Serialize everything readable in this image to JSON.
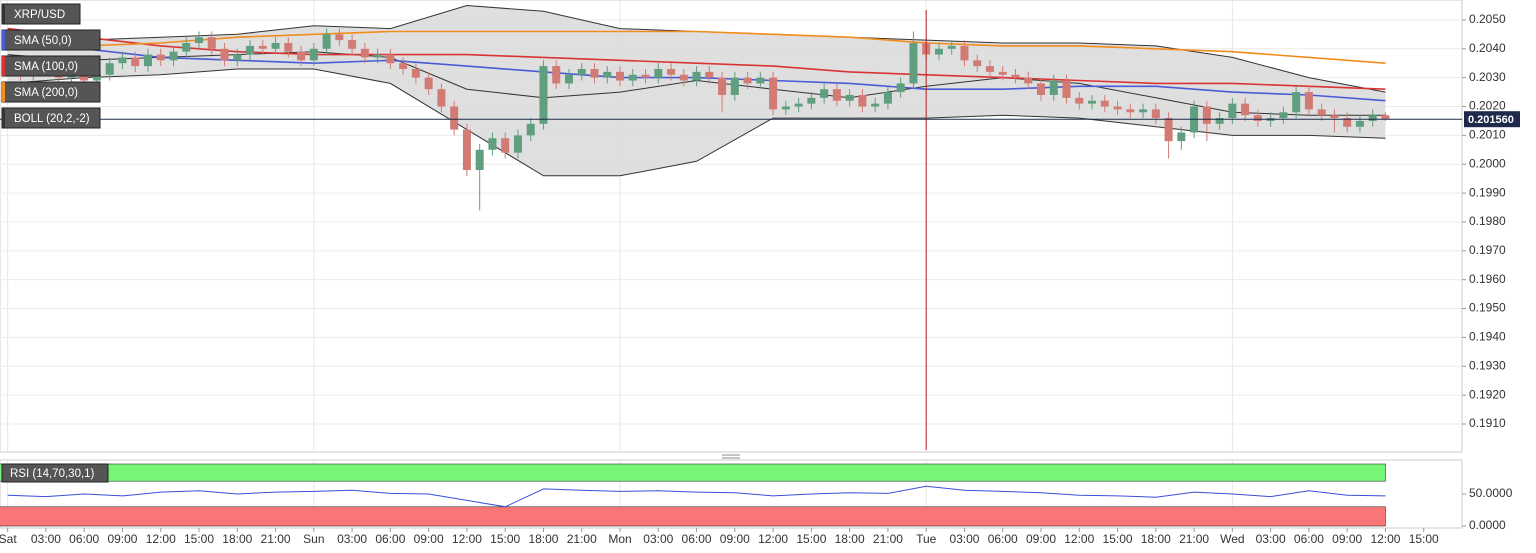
{
  "chart_data": {
    "type": "candlestick",
    "title": "XRP/USD",
    "up_color": "#5f9e7e",
    "down_color": "#d17b74",
    "xlim": [
      -0.6,
      114
    ],
    "ylim": [
      0.19003,
      0.20569
    ],
    "yticks": [
      {
        "value": 0.205,
        "label": "0.2050"
      },
      {
        "value": 0.204,
        "label": "0.2040"
      },
      {
        "value": 0.203,
        "label": "0.2030"
      },
      {
        "value": 0.202,
        "label": "0.2020"
      },
      {
        "value": 0.201,
        "label": "0.2010"
      },
      {
        "value": 0.2,
        "label": "0.2000"
      },
      {
        "value": 0.199,
        "label": "0.1990"
      },
      {
        "value": 0.198,
        "label": "0.1980"
      },
      {
        "value": 0.197,
        "label": "0.1970"
      },
      {
        "value": 0.196,
        "label": "0.1960"
      },
      {
        "value": 0.195,
        "label": "0.1950"
      },
      {
        "value": 0.194,
        "label": "0.1940"
      },
      {
        "value": 0.193,
        "label": "0.1930"
      },
      {
        "value": 0.192,
        "label": "0.1920"
      },
      {
        "value": 0.191,
        "label": "0.1910"
      }
    ],
    "xticks": [
      {
        "value": 0,
        "label": "Sat"
      },
      {
        "value": 3,
        "label": "03:00"
      },
      {
        "value": 6,
        "label": "06:00"
      },
      {
        "value": 9,
        "label": "09:00"
      },
      {
        "value": 12,
        "label": "12:00"
      },
      {
        "value": 15,
        "label": "15:00"
      },
      {
        "value": 18,
        "label": "18:00"
      },
      {
        "value": 21,
        "label": "21:00"
      },
      {
        "value": 24,
        "label": "Sun"
      },
      {
        "value": 27,
        "label": "03:00"
      },
      {
        "value": 30,
        "label": "06:00"
      },
      {
        "value": 33,
        "label": "09:00"
      },
      {
        "value": 36,
        "label": "12:00"
      },
      {
        "value": 39,
        "label": "15:00"
      },
      {
        "value": 42,
        "label": "18:00"
      },
      {
        "value": 45,
        "label": "21:00"
      },
      {
        "value": 48,
        "label": "Mon"
      },
      {
        "value": 51,
        "label": "03:00"
      },
      {
        "value": 54,
        "label": "06:00"
      },
      {
        "value": 57,
        "label": "09:00"
      },
      {
        "value": 60,
        "label": "12:00"
      },
      {
        "value": 63,
        "label": "15:00"
      },
      {
        "value": 66,
        "label": "18:00"
      },
      {
        "value": 69,
        "label": "21:00"
      },
      {
        "value": 72,
        "label": "Tue"
      },
      {
        "value": 75,
        "label": "03:00"
      },
      {
        "value": 78,
        "label": "06:00"
      },
      {
        "value": 81,
        "label": "09:00"
      },
      {
        "value": 84,
        "label": "12:00"
      },
      {
        "value": 87,
        "label": "15:00"
      },
      {
        "value": 90,
        "label": "18:00"
      },
      {
        "value": 93,
        "label": "21:00"
      },
      {
        "value": 96,
        "label": "Wed"
      },
      {
        "value": 99,
        "label": "03:00"
      },
      {
        "value": 102,
        "label": "06:00"
      },
      {
        "value": 105,
        "label": "09:00"
      },
      {
        "value": 108,
        "label": "12:00"
      },
      {
        "value": 111,
        "label": "15:00"
      }
    ],
    "open": [
      0.2036,
      0.2034,
      0.2031,
      0.2035,
      0.2033,
      0.203,
      0.2032,
      0.2029,
      0.2031,
      0.2035,
      0.2037,
      0.2034,
      0.2038,
      0.2036,
      0.2039,
      0.2042,
      0.2044,
      0.204,
      0.2036,
      0.2038,
      0.2041,
      0.204,
      0.2042,
      0.2039,
      0.2036,
      0.204,
      0.2045,
      0.2043,
      0.204,
      0.2037,
      0.2038,
      0.2035,
      0.2033,
      0.203,
      0.2026,
      0.202,
      0.2012,
      0.1998,
      0.2005,
      0.2009,
      0.2004,
      0.201,
      0.2014,
      0.2034,
      0.2028,
      0.2031,
      0.2033,
      0.203,
      0.2032,
      0.2029,
      0.2031,
      0.203,
      0.2033,
      0.2031,
      0.2029,
      0.2032,
      0.203,
      0.2024,
      0.203,
      0.2028,
      0.203,
      0.2019,
      0.202,
      0.2021,
      0.2023,
      0.2026,
      0.2022,
      0.2024,
      0.202,
      0.2021,
      0.2025,
      0.2028,
      0.2042,
      0.2038,
      0.204,
      0.2041,
      0.2036,
      0.2034,
      0.2032,
      0.2031,
      0.203,
      0.2028,
      0.2024,
      0.2029,
      0.2023,
      0.2021,
      0.2022,
      0.202,
      0.2019,
      0.2018,
      0.2019,
      0.2016,
      0.2008,
      0.2011,
      0.202,
      0.2014,
      0.2016,
      0.2021,
      0.2017,
      0.2015,
      0.2016,
      0.2018,
      0.2025,
      0.2019,
      0.2017,
      0.2016,
      0.2013,
      0.2015,
      0.2017
    ],
    "high": [
      0.2038,
      0.2036,
      0.2037,
      0.2037,
      0.2035,
      0.2034,
      0.2034,
      0.2033,
      0.2037,
      0.2039,
      0.2039,
      0.204,
      0.204,
      0.2041,
      0.2044,
      0.2046,
      0.2046,
      0.2042,
      0.204,
      0.2043,
      0.2043,
      0.2044,
      0.2044,
      0.2041,
      0.2042,
      0.2047,
      0.2047,
      0.2045,
      0.2042,
      0.204,
      0.204,
      0.2037,
      0.2035,
      0.2032,
      0.2028,
      0.2022,
      0.2014,
      0.2007,
      0.2011,
      0.2011,
      0.2012,
      0.2016,
      0.2036,
      0.2036,
      0.2033,
      0.2035,
      0.2035,
      0.2034,
      0.2034,
      0.2033,
      0.2033,
      0.2035,
      0.2035,
      0.2033,
      0.2034,
      0.2034,
      0.2032,
      0.2032,
      0.2032,
      0.2032,
      0.2032,
      0.2022,
      0.2023,
      0.2025,
      0.2028,
      0.2028,
      0.2026,
      0.2026,
      0.2023,
      0.2027,
      0.203,
      0.2046,
      0.2044,
      0.2042,
      0.2043,
      0.2043,
      0.2038,
      0.2036,
      0.2034,
      0.2033,
      0.2032,
      0.203,
      0.2031,
      0.2031,
      0.2025,
      0.2024,
      0.2024,
      0.2022,
      0.2021,
      0.2021,
      0.2021,
      0.2018,
      0.2013,
      0.2022,
      0.2022,
      0.2018,
      0.2023,
      0.2023,
      0.2019,
      0.2018,
      0.202,
      0.2027,
      0.2027,
      0.2021,
      0.2019,
      0.2018,
      0.2017,
      0.2019,
      0.2018
    ],
    "low": [
      0.2032,
      0.2029,
      0.2029,
      0.2031,
      0.2028,
      0.2028,
      0.2027,
      0.2027,
      0.2029,
      0.2033,
      0.2032,
      0.2032,
      0.2034,
      0.2034,
      0.2037,
      0.204,
      0.2038,
      0.2034,
      0.2034,
      0.2036,
      0.2038,
      0.2038,
      0.2037,
      0.2034,
      0.2034,
      0.2038,
      0.2041,
      0.2038,
      0.2035,
      0.2035,
      0.2033,
      0.2031,
      0.2028,
      0.2024,
      0.2018,
      0.201,
      0.1996,
      0.1984,
      0.2003,
      0.2002,
      0.2002,
      0.2008,
      0.2012,
      0.2026,
      0.2026,
      0.2029,
      0.2028,
      0.2028,
      0.2027,
      0.2027,
      0.2028,
      0.2028,
      0.2029,
      0.2027,
      0.2027,
      0.2028,
      0.2018,
      0.2022,
      0.2026,
      0.2026,
      0.2017,
      0.2017,
      0.2018,
      0.2019,
      0.2021,
      0.202,
      0.202,
      0.2018,
      0.2018,
      0.2019,
      0.2023,
      0.2026,
      0.2036,
      0.2036,
      0.2038,
      0.2034,
      0.2032,
      0.203,
      0.2029,
      0.2028,
      0.2026,
      0.2022,
      0.2022,
      0.2021,
      0.2019,
      0.2019,
      0.2018,
      0.2017,
      0.2016,
      0.2016,
      0.2014,
      0.2002,
      0.2005,
      0.2009,
      0.2008,
      0.2012,
      0.2014,
      0.2015,
      0.2013,
      0.2013,
      0.2014,
      0.2016,
      0.2017,
      0.2015,
      0.2011,
      0.2011,
      0.2011,
      0.2013,
      0.2015
    ],
    "close": [
      0.2034,
      0.2031,
      0.2035,
      0.2033,
      0.203,
      0.2032,
      0.2029,
      0.2031,
      0.2035,
      0.2037,
      0.2034,
      0.2038,
      0.2036,
      0.2039,
      0.2042,
      0.2044,
      0.204,
      0.2036,
      0.2038,
      0.2041,
      0.204,
      0.2042,
      0.2039,
      0.2036,
      0.204,
      0.2045,
      0.2043,
      0.204,
      0.2037,
      0.2038,
      0.2035,
      0.2033,
      0.203,
      0.2026,
      0.202,
      0.2012,
      0.1998,
      0.2005,
      0.2009,
      0.2004,
      0.201,
      0.2014,
      0.2034,
      0.2028,
      0.2031,
      0.2033,
      0.203,
      0.2032,
      0.2029,
      0.2031,
      0.203,
      0.2033,
      0.2031,
      0.2029,
      0.2032,
      0.203,
      0.2024,
      0.203,
      0.2028,
      0.203,
      0.2019,
      0.202,
      0.2021,
      0.2023,
      0.2026,
      0.2022,
      0.2024,
      0.202,
      0.2021,
      0.2025,
      0.2028,
      0.2042,
      0.2038,
      0.204,
      0.2041,
      0.2036,
      0.2034,
      0.2032,
      0.2031,
      0.203,
      0.2028,
      0.2024,
      0.2029,
      0.2023,
      0.2021,
      0.2022,
      0.202,
      0.2019,
      0.2018,
      0.2019,
      0.2016,
      0.2008,
      0.2011,
      0.202,
      0.2014,
      0.2016,
      0.2021,
      0.2017,
      0.2015,
      0.2016,
      0.2018,
      0.2025,
      0.2019,
      0.2017,
      0.2016,
      0.2013,
      0.2015,
      0.2017,
      0.20156
    ],
    "last": 0.20156,
    "last_label": "0.201560",
    "last_color": "#1d2a4a",
    "event_x": 72,
    "event_color": "#b22222",
    "line_x": [
      0,
      6,
      12,
      18,
      24,
      30,
      36,
      42,
      48,
      54,
      60,
      66,
      72,
      78,
      84,
      90,
      96,
      102,
      108
    ],
    "series": [
      {
        "name": "SMA (50,0)",
        "color": "#4a5bd6",
        "values": [
          0.2045,
          0.204,
          0.2037,
          0.2036,
          0.2035,
          0.2036,
          0.2034,
          0.2032,
          0.203,
          0.203,
          0.2029,
          0.2028,
          0.2026,
          0.2026,
          0.2027,
          0.2027,
          0.2025,
          0.2024,
          0.2022
        ]
      },
      {
        "name": "SMA (100,0)",
        "color": "#d93434",
        "values": [
          0.2047,
          0.2044,
          0.2041,
          0.2039,
          0.2038,
          0.2038,
          0.2038,
          0.2037,
          0.2036,
          0.2035,
          0.2034,
          0.2032,
          0.2031,
          0.203,
          0.2029,
          0.2028,
          0.2028,
          0.2027,
          0.2026
        ]
      },
      {
        "name": "SMA (200,0)",
        "color": "#f28c1c",
        "values": [
          0.204,
          0.2041,
          0.2042,
          0.2044,
          0.2045,
          0.2046,
          0.2046,
          0.2046,
          0.2046,
          0.2046,
          0.2045,
          0.2044,
          0.2042,
          0.2041,
          0.2041,
          0.204,
          0.2039,
          0.2037,
          0.2035
        ]
      }
    ],
    "bollinger": {
      "name": "BOLL (20,2,-2)",
      "color": "#333333",
      "fill": "#dcdcdc",
      "upper": [
        0.2046,
        0.2043,
        0.2044,
        0.2045,
        0.2048,
        0.2047,
        0.2055,
        0.2053,
        0.2047,
        0.2046,
        0.2045,
        0.2044,
        0.2043,
        0.2042,
        0.2042,
        0.2041,
        0.2037,
        0.203,
        0.2025
      ],
      "middle": [
        0.2038,
        0.2036,
        0.2037,
        0.2038,
        0.2039,
        0.2037,
        0.2026,
        0.2023,
        0.2025,
        0.2029,
        0.2026,
        0.2023,
        0.2027,
        0.203,
        0.2028,
        0.2023,
        0.2018,
        0.2017,
        0.2017
      ],
      "lower": [
        0.2028,
        0.203,
        0.2031,
        0.2033,
        0.2033,
        0.2028,
        0.2012,
        0.1996,
        0.1996,
        0.2001,
        0.2016,
        0.2016,
        0.2016,
        0.2017,
        0.2016,
        0.2013,
        0.201,
        0.201,
        0.2009
      ]
    },
    "rsi": {
      "type": "line",
      "name": "RSI (14,70,30,1)",
      "color": "#3a4fd8",
      "overbought": 70,
      "oversold": 30,
      "overbought_color": "#77f577",
      "oversold_color": "#f87676",
      "ylim": [
        0,
        100
      ],
      "yticks": [
        {
          "value": 50,
          "label": "50.0000"
        },
        {
          "value": 0,
          "label": "0.0000"
        }
      ],
      "x": [
        0,
        3,
        6,
        9,
        12,
        15,
        18,
        21,
        24,
        27,
        30,
        33,
        36,
        39,
        42,
        45,
        48,
        51,
        54,
        57,
        60,
        63,
        66,
        69,
        72,
        75,
        78,
        81,
        84,
        87,
        90,
        93,
        96,
        99,
        102,
        105,
        108
      ],
      "values": [
        48,
        46,
        50,
        47,
        53,
        55,
        50,
        53,
        54,
        56,
        51,
        50,
        40,
        30,
        58,
        56,
        54,
        55,
        53,
        52,
        47,
        50,
        52,
        51,
        62,
        56,
        54,
        52,
        48,
        47,
        45,
        53,
        50,
        46,
        55,
        48,
        47
      ]
    }
  }
}
